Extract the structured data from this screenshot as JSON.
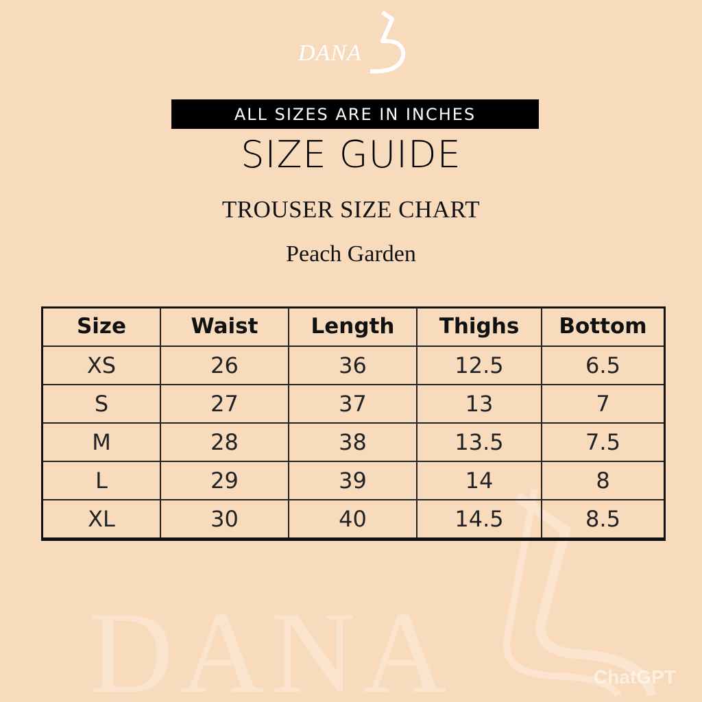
{
  "brand": {
    "logo_text": "DANA",
    "logo_color": "#ffffff"
  },
  "banner": "ALL SIZES ARE IN INCHES",
  "title": "SIZE GUIDE",
  "subtitle": "TROUSER SIZE CHART",
  "collection": "Peach Garden",
  "colors": {
    "background": "#f8dbbd",
    "banner": "#000000",
    "text": "#111111"
  },
  "table": {
    "headers": [
      "Size",
      "Waist",
      "Length",
      "Thighs",
      "Bottom"
    ],
    "rows": [
      [
        "XS",
        "26",
        "36",
        "12.5",
        "6.5"
      ],
      [
        "S",
        "27",
        "37",
        "13",
        "7"
      ],
      [
        "M",
        "28",
        "38",
        "13.5",
        "7.5"
      ],
      [
        "L",
        "29",
        "39",
        "14",
        "8"
      ],
      [
        "XL",
        "30",
        "40",
        "14.5",
        "8.5"
      ]
    ]
  },
  "watermark": {
    "text": "DANA",
    "chatgpt": "ChatGPT"
  }
}
